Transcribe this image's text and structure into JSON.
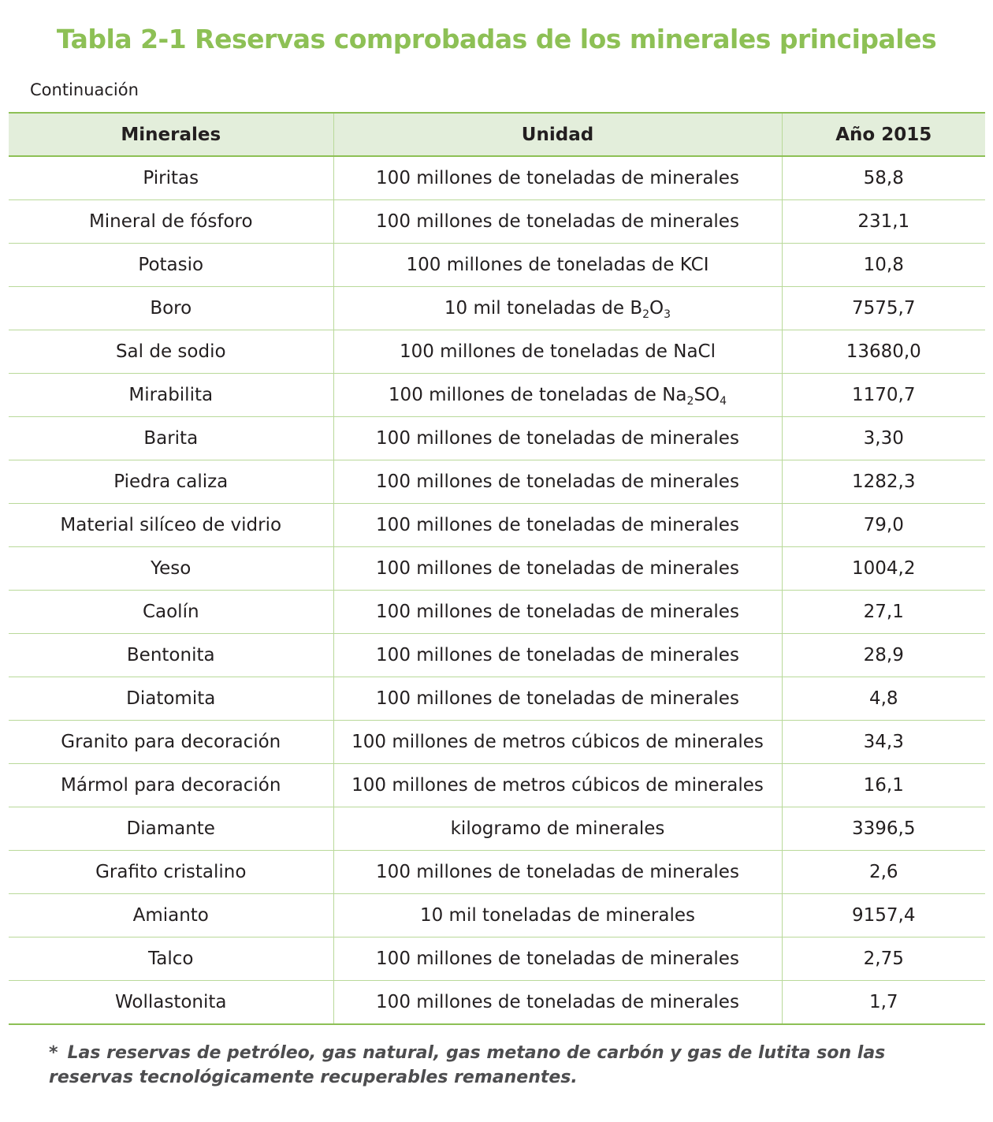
{
  "title": "Tabla 2-1 Reservas comprobadas de los minerales principales",
  "continuation": "Continuación",
  "table": {
    "headers": [
      "Minerales",
      "Unidad",
      "Año 2015"
    ],
    "rows": [
      {
        "mineral": "Piritas",
        "unit": "100 millones de toneladas de minerales",
        "value": "58,8"
      },
      {
        "mineral": "Mineral de fósforo",
        "unit": "100 millones de toneladas de minerales",
        "value": "231,1"
      },
      {
        "mineral": "Potasio",
        "unit": "100 millones de toneladas de KCI",
        "value": "10,8"
      },
      {
        "mineral": "Boro",
        "unit_parts": [
          "10 mil toneladas de B",
          "2",
          "O",
          "3"
        ],
        "value": "7575,7"
      },
      {
        "mineral": "Sal de sodio",
        "unit": "100 millones de toneladas de NaCl",
        "value": "13680,0"
      },
      {
        "mineral": "Mirabilita",
        "unit_parts": [
          "100 millones de toneladas de Na",
          "2",
          "SO",
          "4"
        ],
        "value": "1170,7"
      },
      {
        "mineral": "Barita",
        "unit": "100 millones de toneladas de minerales",
        "value": "3,30"
      },
      {
        "mineral": "Piedra caliza",
        "unit": "100 millones de toneladas de minerales",
        "value": "1282,3"
      },
      {
        "mineral": "Material silíceo de vidrio",
        "unit": "100 millones de toneladas de minerales",
        "value": "79,0"
      },
      {
        "mineral": "Yeso",
        "unit": "100 millones de toneladas de minerales",
        "value": "1004,2"
      },
      {
        "mineral": "Caolín",
        "unit": "100 millones de toneladas de minerales",
        "value": "27,1"
      },
      {
        "mineral": "Bentonita",
        "unit": "100 millones de toneladas de minerales",
        "value": "28,9"
      },
      {
        "mineral": "Diatomita",
        "unit": "100 millones de toneladas de minerales",
        "value": "4,8"
      },
      {
        "mineral": "Granito para decoración",
        "unit": "100 millones de metros cúbicos de minerales",
        "value": "34,3"
      },
      {
        "mineral": "Mármol para decoración",
        "unit": "100 millones de metros cúbicos de minerales",
        "value": "16,1"
      },
      {
        "mineral": "Diamante",
        "unit": "kilogramo de minerales",
        "value": "3396,5"
      },
      {
        "mineral": "Grafito cristalino",
        "unit": "100 millones de toneladas de minerales",
        "value": "2,6"
      },
      {
        "mineral": "Amianto",
        "unit": "10 mil toneladas de minerales",
        "value": "9157,4"
      },
      {
        "mineral": "Talco",
        "unit": "100 millones de toneladas de minerales",
        "value": "2,75"
      },
      {
        "mineral": "Wollastonita",
        "unit": "100 millones de toneladas de minerales",
        "value": "1,7"
      }
    ]
  },
  "note": {
    "symbol": "*",
    "text": "Las reservas de petróleo, gas natural, gas metano de carbón y gas de lutita son las reservas tecnológicamente recuperables remanentes."
  },
  "colors": {
    "title": "#8dc055",
    "header_bg": "#e3eedb",
    "rule": "#8dc055",
    "grid": "#b9d99a",
    "note": "#4d4d4f"
  }
}
